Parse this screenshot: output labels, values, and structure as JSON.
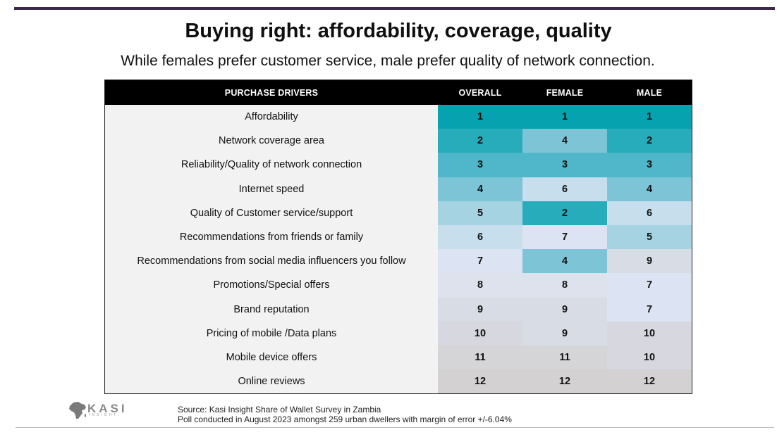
{
  "header": {
    "title": "Buying right: affordability, coverage, quality",
    "subtitle": "While females prefer customer service, male prefer quality of network connection."
  },
  "table": {
    "columns": [
      "PURCHASE DRIVERS",
      "OVERALL",
      "FEMALE",
      "MALE"
    ],
    "rows": [
      {
        "driver": "Affordability",
        "overall": "1",
        "female": "1",
        "male": "1"
      },
      {
        "driver": "Network coverage area",
        "overall": "2",
        "female": "4",
        "male": "2"
      },
      {
        "driver": "Reliability/Quality of network connection",
        "overall": "3",
        "female": "3",
        "male": "3"
      },
      {
        "driver": "Internet speed",
        "overall": "4",
        "female": "6",
        "male": "4"
      },
      {
        "driver": "Quality of Customer service/support",
        "overall": "5",
        "female": "2",
        "male": "6"
      },
      {
        "driver": "Recommendations from friends or family",
        "overall": "6",
        "female": "7",
        "male": "5"
      },
      {
        "driver": "Recommendations from social media influencers you follow",
        "overall": "7",
        "female": "4",
        "male": "9"
      },
      {
        "driver": "Promotions/Special offers",
        "overall": "8",
        "female": "8",
        "male": "7"
      },
      {
        "driver": "Brand reputation",
        "overall": "9",
        "female": "9",
        "male": "7"
      },
      {
        "driver": "Pricing of mobile /Data plans",
        "overall": "10",
        "female": "9",
        "male": "10"
      },
      {
        "driver": "Mobile device offers",
        "overall": "11",
        "female": "11",
        "male": "10"
      },
      {
        "driver": "Online reviews",
        "overall": "12",
        "female": "12",
        "male": "12"
      }
    ],
    "rank_colors": {
      "1": "#07a2b0",
      "2": "#27acbb",
      "3": "#4fb7c9",
      "4": "#7cc4d6",
      "5": "#a5d3e2",
      "6": "#c7deed",
      "7": "#dce3f2",
      "8": "#dde2ec",
      "9": "#d8dce4",
      "10": "#d6d7df",
      "11": "#d5d5d7",
      "12": "#d3d1d1"
    }
  },
  "footer": {
    "logo_text": "KASI",
    "logo_subtext": "INSIGHT",
    "source_line1": "Source: Kasi Insight Share of Wallet Survey in Zambia",
    "source_line2": "Poll conducted in August 2023 amongst 259 urban dwellers with margin of error +/-6.04%"
  }
}
